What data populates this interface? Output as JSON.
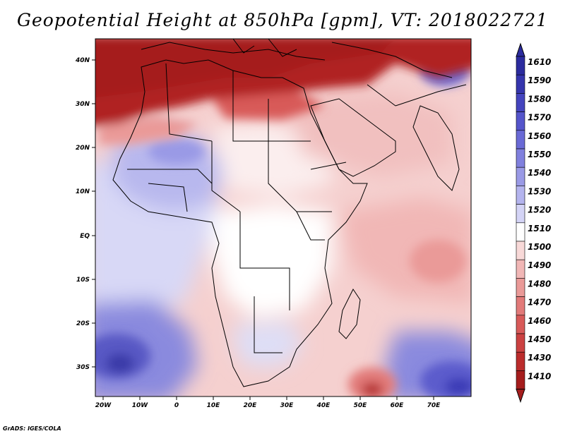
{
  "title": "Geopotential Height at 850hPa [gpm], VT: 2018022721",
  "credit": "GrADS: IGES/COLA",
  "map": {
    "lat_labels": [
      "40N",
      "30N",
      "20N",
      "10N",
      "EQ",
      "10S",
      "20S",
      "30S"
    ],
    "lon_labels": [
      "20W",
      "10W",
      "0",
      "10E",
      "20E",
      "30E",
      "40E",
      "50E",
      "60E",
      "70E"
    ],
    "colors": {
      "ocean_east": "#f4c2c0",
      "north_band": "#b02222",
      "blue_low": "#4f4fd0",
      "pink_high": "#e87f7f"
    }
  },
  "colorbar": {
    "levels": [
      "1610",
      "1590",
      "1580",
      "1570",
      "1560",
      "1550",
      "1540",
      "1530",
      "1520",
      "1510",
      "1500",
      "1490",
      "1480",
      "1470",
      "1460",
      "1450",
      "1430",
      "1410"
    ],
    "colors": [
      "#2b2b9e",
      "#3535ad",
      "#4444be",
      "#5555cb",
      "#6a6ad6",
      "#8080de",
      "#9a9ae6",
      "#b4b4ee",
      "#d4d4f6",
      "#ffffff",
      "#f8d9d8",
      "#f1b7b6",
      "#ea9a98",
      "#e27a79",
      "#d85a59",
      "#cb4141",
      "#bb2c2c",
      "#a51d1d"
    ],
    "tip_colors": {
      "top": "#2b2b9e",
      "bottom": "#a51d1d"
    }
  }
}
